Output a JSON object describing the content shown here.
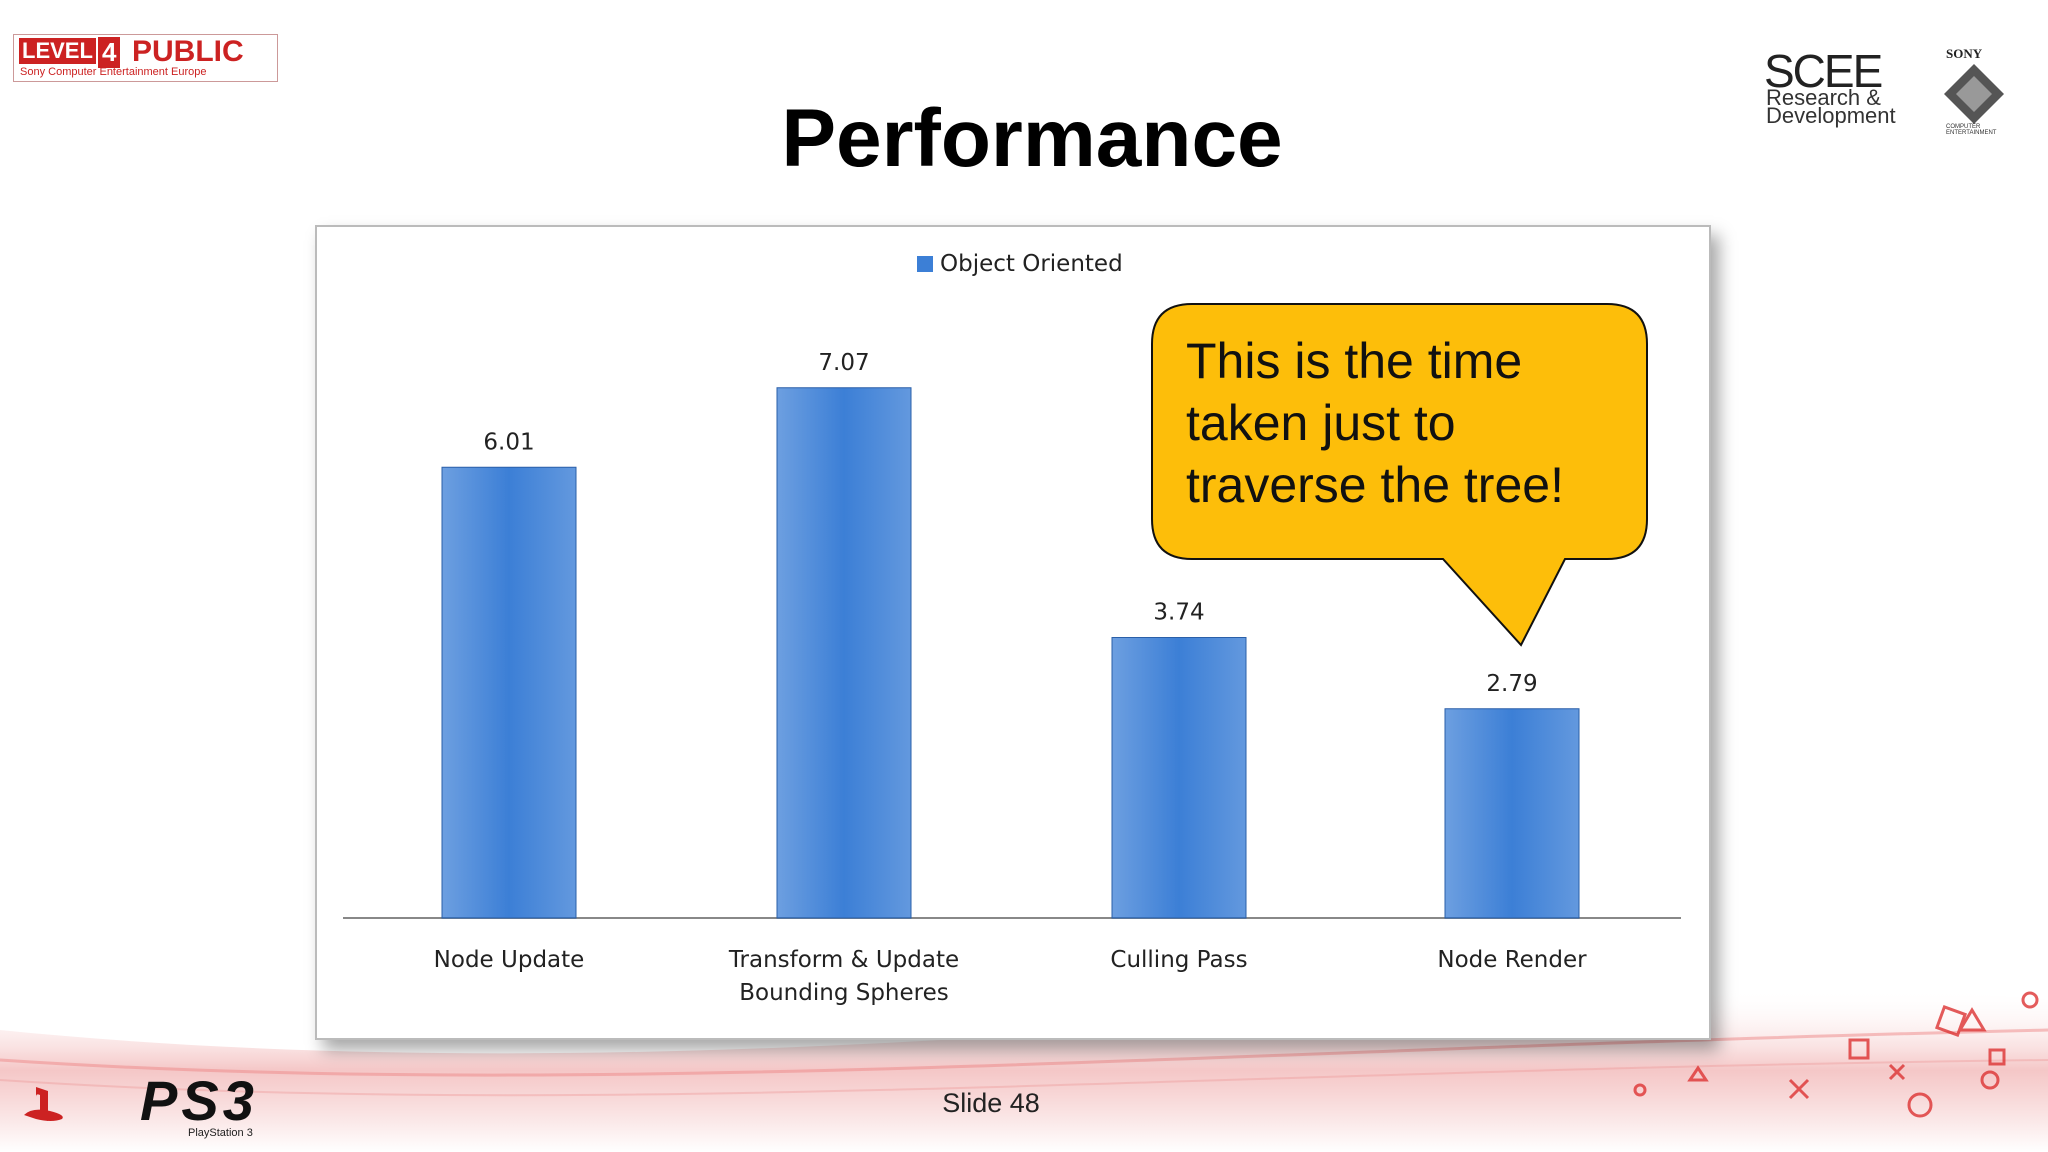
{
  "header": {
    "badge": {
      "level": "LEVEL",
      "number": "4",
      "public": "PUBLIC",
      "company": "Sony Computer Entertainment Europe"
    },
    "scee": {
      "name": "SCEE",
      "line1": "Research &",
      "line2": "Development"
    },
    "sony": {
      "name": "SONY",
      "sub": "COMPUTER ENTERTAINMENT"
    }
  },
  "chart_data": {
    "type": "bar",
    "title": "Performance",
    "categories": [
      "Node Update",
      "Transform & Update Bounding Spheres",
      "Culling Pass",
      "Node Render"
    ],
    "series": [
      {
        "name": "Object Oriented",
        "color": "#3c7fd6",
        "values": [
          6.01,
          7.07,
          3.74,
          2.79
        ]
      }
    ]
  },
  "callout": {
    "lines": [
      "This is the time",
      "taken just to",
      "traverse the tree!"
    ]
  },
  "footer": {
    "ps3": "PS3",
    "playstation": "PlayStation 3",
    "slide": "Slide 48"
  }
}
